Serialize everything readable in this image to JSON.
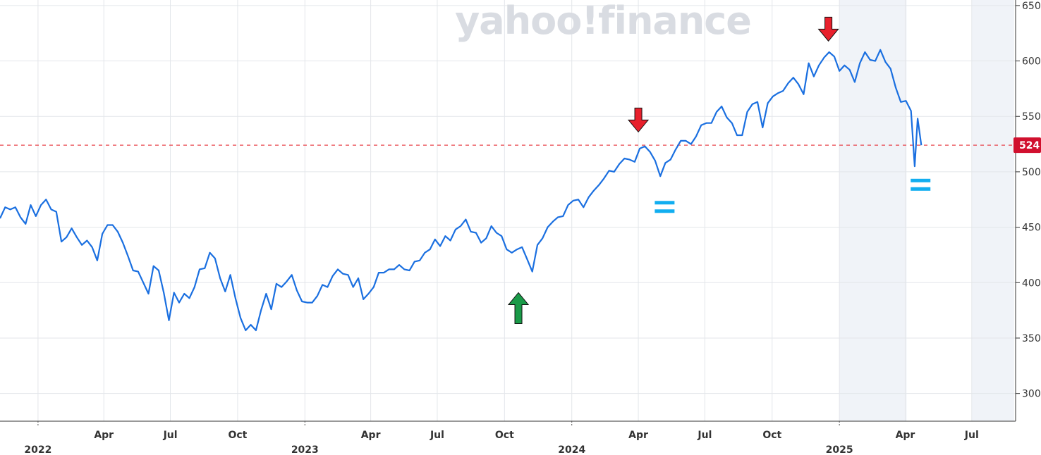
{
  "watermark": "yahoo!finance",
  "colors": {
    "line": "#1a6fe0",
    "grid": "#e3e6ea",
    "shade": "#f0f3f8",
    "ref_line": "#e8434a",
    "price_tag": "#d1102e",
    "down_arrow": "#e8202c",
    "up_arrow": "#1a9a48",
    "equals_mark": "#11aef0"
  },
  "chart_data": {
    "type": "line",
    "title": "",
    "xlabel": "",
    "ylabel": "",
    "ylim": [
      275,
      655
    ],
    "xlim": [
      "2021-11-10",
      "2025-08-30"
    ],
    "yticks": [
      300,
      350,
      400,
      450,
      500,
      550,
      600,
      650
    ],
    "ytick_labels": [
      "300",
      "350",
      "400",
      "450",
      "500",
      "550",
      "600",
      "650"
    ],
    "xticks": [
      {
        "date": "2022-01-01",
        "label": "2022",
        "year": true
      },
      {
        "date": "2022-04-01",
        "label": "Apr",
        "year": false
      },
      {
        "date": "2022-07-01",
        "label": "Jul",
        "year": false
      },
      {
        "date": "2022-10-01",
        "label": "Oct",
        "year": false
      },
      {
        "date": "2023-01-01",
        "label": "2023",
        "year": true
      },
      {
        "date": "2023-04-01",
        "label": "Apr",
        "year": false
      },
      {
        "date": "2023-07-01",
        "label": "Jul",
        "year": false
      },
      {
        "date": "2023-10-01",
        "label": "Oct",
        "year": false
      },
      {
        "date": "2024-01-01",
        "label": "2024",
        "year": true
      },
      {
        "date": "2024-04-01",
        "label": "Apr",
        "year": false
      },
      {
        "date": "2024-07-01",
        "label": "Jul",
        "year": false
      },
      {
        "date": "2024-10-01",
        "label": "Oct",
        "year": false
      },
      {
        "date": "2025-01-01",
        "label": "2025",
        "year": true
      },
      {
        "date": "2025-04-01",
        "label": "Apr",
        "year": false
      },
      {
        "date": "2025-07-01",
        "label": "Jul",
        "year": false
      }
    ],
    "reference_line": 524,
    "price_label": "524",
    "shaded_regions": [
      [
        "2025-01-01",
        "2025-04-03"
      ],
      [
        "2025-07-01",
        "2025-08-28"
      ]
    ],
    "grid": true,
    "series": [
      {
        "points": [
          [
            "2021-11-10",
            458
          ],
          [
            "2021-11-17",
            468
          ],
          [
            "2021-11-24",
            466
          ],
          [
            "2021-12-01",
            468
          ],
          [
            "2021-12-08",
            459
          ],
          [
            "2021-12-15",
            453
          ],
          [
            "2021-12-22",
            470
          ],
          [
            "2021-12-29",
            460
          ],
          [
            "2022-01-05",
            470
          ],
          [
            "2022-01-12",
            475
          ],
          [
            "2022-01-19",
            466
          ],
          [
            "2022-01-26",
            464
          ],
          [
            "2022-02-02",
            437
          ],
          [
            "2022-02-09",
            441
          ],
          [
            "2022-02-16",
            449
          ],
          [
            "2022-02-23",
            441
          ],
          [
            "2022-03-02",
            434
          ],
          [
            "2022-03-09",
            438
          ],
          [
            "2022-03-16",
            432
          ],
          [
            "2022-03-23",
            420
          ],
          [
            "2022-03-30",
            444
          ],
          [
            "2022-04-06",
            452
          ],
          [
            "2022-04-13",
            452
          ],
          [
            "2022-04-20",
            446
          ],
          [
            "2022-04-27",
            436
          ],
          [
            "2022-05-04",
            424
          ],
          [
            "2022-05-11",
            411
          ],
          [
            "2022-05-18",
            410
          ],
          [
            "2022-05-25",
            400
          ],
          [
            "2022-06-01",
            390
          ],
          [
            "2022-06-08",
            415
          ],
          [
            "2022-06-15",
            411
          ],
          [
            "2022-06-22",
            391
          ],
          [
            "2022-06-29",
            366
          ],
          [
            "2022-07-06",
            391
          ],
          [
            "2022-07-13",
            382
          ],
          [
            "2022-07-20",
            390
          ],
          [
            "2022-07-27",
            386
          ],
          [
            "2022-08-03",
            396
          ],
          [
            "2022-08-10",
            412
          ],
          [
            "2022-08-17",
            413
          ],
          [
            "2022-08-24",
            427
          ],
          [
            "2022-08-31",
            422
          ],
          [
            "2022-09-07",
            404
          ],
          [
            "2022-09-14",
            392
          ],
          [
            "2022-09-21",
            407
          ],
          [
            "2022-09-28",
            386
          ],
          [
            "2022-10-05",
            368
          ],
          [
            "2022-10-12",
            357
          ],
          [
            "2022-10-19",
            362
          ],
          [
            "2022-10-26",
            357
          ],
          [
            "2022-11-02",
            375
          ],
          [
            "2022-11-09",
            390
          ],
          [
            "2022-11-16",
            376
          ],
          [
            "2022-11-23",
            399
          ],
          [
            "2022-11-30",
            396
          ],
          [
            "2022-12-07",
            401
          ],
          [
            "2022-12-14",
            407
          ],
          [
            "2022-12-21",
            393
          ],
          [
            "2022-12-28",
            383
          ],
          [
            "2023-01-04",
            382
          ],
          [
            "2023-01-11",
            382
          ],
          [
            "2023-01-18",
            388
          ],
          [
            "2023-01-25",
            398
          ],
          [
            "2023-02-01",
            396
          ],
          [
            "2023-02-08",
            406
          ],
          [
            "2023-02-15",
            412
          ],
          [
            "2023-02-22",
            408
          ],
          [
            "2023-03-01",
            407
          ],
          [
            "2023-03-08",
            396
          ],
          [
            "2023-03-15",
            404
          ],
          [
            "2023-03-22",
            385
          ],
          [
            "2023-03-29",
            390
          ],
          [
            "2023-04-05",
            396
          ],
          [
            "2023-04-12",
            409
          ],
          [
            "2023-04-19",
            409
          ],
          [
            "2023-04-26",
            412
          ],
          [
            "2023-05-03",
            412
          ],
          [
            "2023-05-10",
            416
          ],
          [
            "2023-05-17",
            412
          ],
          [
            "2023-05-24",
            411
          ],
          [
            "2023-05-31",
            419
          ],
          [
            "2023-06-07",
            420
          ],
          [
            "2023-06-14",
            427
          ],
          [
            "2023-06-21",
            430
          ],
          [
            "2023-06-28",
            439
          ],
          [
            "2023-07-05",
            433
          ],
          [
            "2023-07-12",
            442
          ],
          [
            "2023-07-19",
            438
          ],
          [
            "2023-07-26",
            448
          ],
          [
            "2023-08-02",
            451
          ],
          [
            "2023-08-09",
            457
          ],
          [
            "2023-08-16",
            446
          ],
          [
            "2023-08-23",
            445
          ],
          [
            "2023-08-30",
            436
          ],
          [
            "2023-09-06",
            440
          ],
          [
            "2023-09-13",
            451
          ],
          [
            "2023-09-20",
            445
          ],
          [
            "2023-09-27",
            442
          ],
          [
            "2023-10-04",
            430
          ],
          [
            "2023-10-11",
            427
          ],
          [
            "2023-10-18",
            430
          ],
          [
            "2023-10-25",
            432
          ],
          [
            "2023-11-01",
            421
          ],
          [
            "2023-11-08",
            410
          ],
          [
            "2023-11-15",
            434
          ],
          [
            "2023-11-22",
            440
          ],
          [
            "2023-11-29",
            450
          ],
          [
            "2023-12-06",
            455
          ],
          [
            "2023-12-13",
            459
          ],
          [
            "2023-12-20",
            460
          ],
          [
            "2023-12-27",
            470
          ],
          [
            "2024-01-03",
            474
          ],
          [
            "2024-01-10",
            475
          ],
          [
            "2024-01-17",
            468
          ],
          [
            "2024-01-24",
            477
          ],
          [
            "2024-01-31",
            483
          ],
          [
            "2024-02-07",
            488
          ],
          [
            "2024-02-14",
            494
          ],
          [
            "2024-02-21",
            501
          ],
          [
            "2024-02-28",
            500
          ],
          [
            "2024-03-06",
            507
          ],
          [
            "2024-03-13",
            512
          ],
          [
            "2024-03-20",
            511
          ],
          [
            "2024-03-27",
            509
          ],
          [
            "2024-04-03",
            521
          ],
          [
            "2024-04-10",
            523
          ],
          [
            "2024-04-17",
            518
          ],
          [
            "2024-04-24",
            510
          ],
          [
            "2024-05-01",
            496
          ],
          [
            "2024-05-08",
            508
          ],
          [
            "2024-05-15",
            511
          ],
          [
            "2024-05-22",
            520
          ],
          [
            "2024-05-29",
            528
          ],
          [
            "2024-06-05",
            528
          ],
          [
            "2024-06-12",
            525
          ],
          [
            "2024-06-19",
            532
          ],
          [
            "2024-06-26",
            542
          ],
          [
            "2024-07-03",
            544
          ],
          [
            "2024-07-10",
            544
          ],
          [
            "2024-07-17",
            554
          ],
          [
            "2024-07-24",
            559
          ],
          [
            "2024-07-31",
            549
          ],
          [
            "2024-08-07",
            544
          ],
          [
            "2024-08-14",
            533
          ],
          [
            "2024-08-21",
            533
          ],
          [
            "2024-08-28",
            554
          ],
          [
            "2024-09-04",
            561
          ],
          [
            "2024-09-11",
            563
          ],
          [
            "2024-09-18",
            540
          ],
          [
            "2024-09-25",
            562
          ],
          [
            "2024-10-02",
            568
          ],
          [
            "2024-10-09",
            571
          ],
          [
            "2024-10-16",
            573
          ],
          [
            "2024-10-23",
            580
          ],
          [
            "2024-10-30",
            585
          ],
          [
            "2024-11-06",
            579
          ],
          [
            "2024-11-13",
            570
          ],
          [
            "2024-11-20",
            598
          ],
          [
            "2024-11-27",
            586
          ],
          [
            "2024-12-04",
            596
          ],
          [
            "2024-12-11",
            603
          ],
          [
            "2024-12-18",
            608
          ],
          [
            "2024-12-25",
            604
          ],
          [
            "2025-01-01",
            591
          ],
          [
            "2025-01-08",
            596
          ],
          [
            "2025-01-15",
            592
          ],
          [
            "2025-01-22",
            581
          ],
          [
            "2025-01-29",
            598
          ],
          [
            "2025-02-05",
            608
          ],
          [
            "2025-02-12",
            601
          ],
          [
            "2025-02-19",
            600
          ],
          [
            "2025-02-26",
            610
          ],
          [
            "2025-03-05",
            599
          ],
          [
            "2025-03-12",
            593
          ],
          [
            "2025-03-19",
            576
          ],
          [
            "2025-03-26",
            563
          ],
          [
            "2025-04-02",
            564
          ],
          [
            "2025-04-09",
            555
          ],
          [
            "2025-04-14",
            505
          ],
          [
            "2025-04-18",
            548
          ],
          [
            "2025-04-23",
            524
          ]
        ]
      }
    ],
    "annotations": [
      {
        "type": "arrow_down",
        "date": "2024-04-01",
        "value": 541,
        "color": "red"
      },
      {
        "type": "arrow_down",
        "date": "2024-12-17",
        "value": 623,
        "color": "red"
      },
      {
        "type": "arrow_up",
        "date": "2023-10-20",
        "value": 377,
        "color": "green"
      },
      {
        "type": "equals",
        "date": "2024-05-07",
        "value": 468,
        "color": "blue"
      },
      {
        "type": "equals",
        "date": "2025-04-22",
        "value": 488,
        "color": "blue"
      }
    ]
  }
}
